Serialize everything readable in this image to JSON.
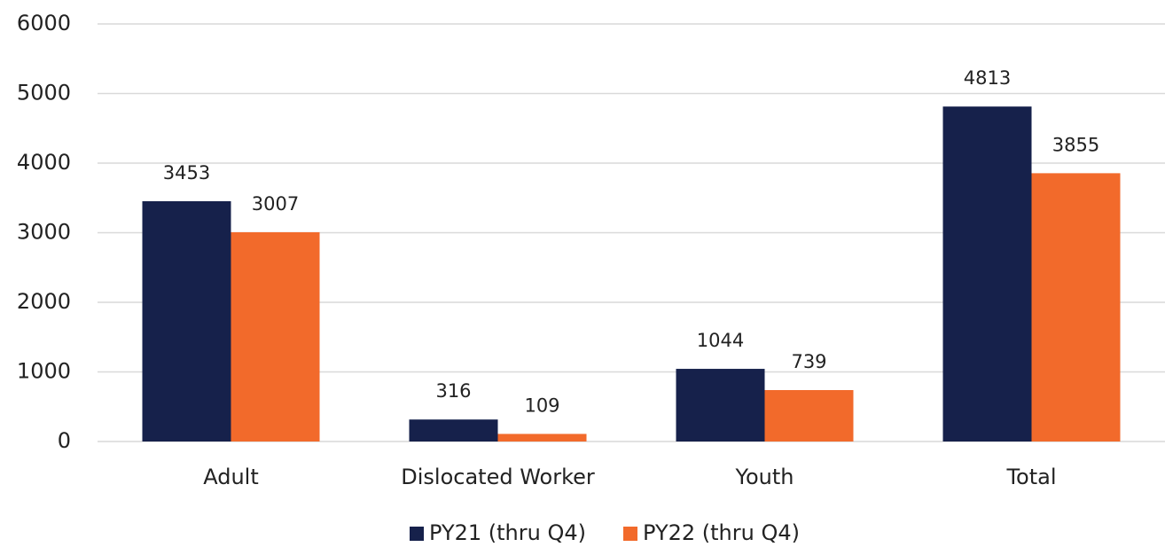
{
  "chart_data": {
    "type": "bar",
    "categories": [
      "Adult",
      "Dislocated Worker",
      "Youth",
      "Total"
    ],
    "series": [
      {
        "name": "PY21 (thru Q4)",
        "color": "#16214b",
        "values": [
          3453,
          316,
          1044,
          4813
        ]
      },
      {
        "name": "PY22 (thru Q4)",
        "color": "#f26a2b",
        "values": [
          3007,
          109,
          739,
          3855
        ]
      }
    ],
    "ylim": [
      0,
      6000
    ],
    "yticks": [
      0,
      1000,
      2000,
      3000,
      4000,
      5000,
      6000
    ],
    "grid": true,
    "legend": "bottom"
  }
}
